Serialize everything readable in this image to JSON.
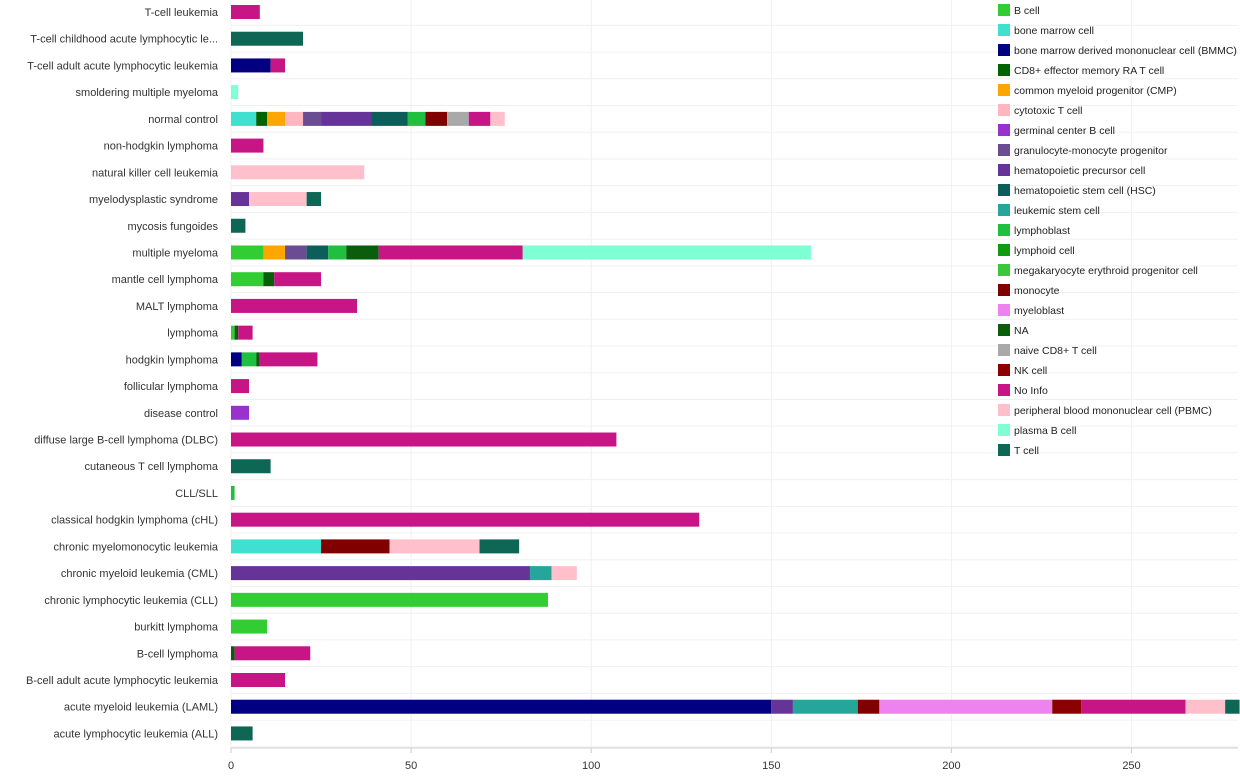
{
  "chart_data": {
    "type": "bar",
    "orientation": "horizontal",
    "stacked": true,
    "grid": true,
    "legend_position": "top-right",
    "xlim": [
      0,
      280
    ],
    "x_ticks": [
      0,
      50,
      100,
      150,
      200,
      250
    ],
    "categories": [
      "T-cell leukemia",
      "T-cell childhood acute lymphocytic le...",
      "T-cell adult acute lymphocytic leukemia",
      "smoldering multiple myeloma",
      "normal control",
      "non-hodgkin lymphoma",
      "natural killer cell leukemia",
      "myelodysplastic syndrome",
      "mycosis fungoides",
      "multiple myeloma",
      "mantle cell lymphoma",
      "MALT lymphoma",
      "lymphoma",
      "hodgkin lymphoma",
      "follicular lymphoma",
      "disease control",
      "diffuse large B-cell lymphoma (DLBC)",
      "cutaneous T cell lymphoma",
      "CLL/SLL",
      "classical hodgkin lymphoma (cHL)",
      "chronic myelomonocytic leukemia",
      "chronic myeloid leukemia (CML)",
      "chronic lymphocytic leukemia (CLL)",
      "burkitt lymphoma",
      "B-cell lymphoma",
      "B-cell adult acute lymphocytic leukemia",
      "acute myeloid leukemia (LAML)",
      "acute lymphocytic leukemia (ALL)"
    ],
    "series": [
      {
        "name": "B cell",
        "color": "#32cd32",
        "values": [
          0,
          0,
          0,
          0,
          0,
          0,
          0,
          0,
          0,
          9,
          9,
          0,
          1,
          0,
          0,
          0,
          0,
          0,
          0,
          0,
          0,
          0,
          88,
          10,
          0,
          0,
          0,
          0
        ]
      },
      {
        "name": "bone marrow cell",
        "color": "#40e0d0",
        "values": [
          0,
          0,
          0,
          0,
          7,
          0,
          0,
          0,
          0,
          0,
          0,
          0,
          0,
          0,
          0,
          0,
          0,
          0,
          0,
          0,
          25,
          0,
          0,
          0,
          0,
          0,
          0,
          0
        ]
      },
      {
        "name": "bone marrow derived mononuclear cell (BMMC)",
        "color": "#000080",
        "values": [
          0,
          0,
          11,
          0,
          0,
          0,
          0,
          0,
          0,
          0,
          0,
          0,
          0,
          3,
          0,
          0,
          0,
          0,
          0,
          0,
          0,
          0,
          0,
          0,
          0,
          0,
          150,
          0
        ]
      },
      {
        "name": "CD8+ effector memory RA T cell",
        "color": "#006400",
        "values": [
          0,
          0,
          0,
          0,
          3,
          0,
          0,
          0,
          0,
          0,
          0,
          0,
          0,
          0,
          0,
          0,
          0,
          0,
          0,
          0,
          0,
          0,
          0,
          0,
          0,
          0,
          0,
          0
        ]
      },
      {
        "name": "common myeloid progenitor (CMP)",
        "color": "#ffa500",
        "values": [
          0,
          0,
          0,
          0,
          5,
          0,
          0,
          0,
          0,
          6,
          0,
          0,
          0,
          0,
          0,
          0,
          0,
          0,
          0,
          0,
          0,
          0,
          0,
          0,
          0,
          0,
          0,
          0
        ]
      },
      {
        "name": "cytotoxic T cell",
        "color": "#ffb6c1",
        "values": [
          0,
          0,
          0,
          0,
          5,
          0,
          0,
          0,
          0,
          0,
          0,
          0,
          0,
          0,
          0,
          0,
          0,
          0,
          0,
          0,
          0,
          0,
          0,
          0,
          0,
          0,
          0,
          0
        ]
      },
      {
        "name": "germinal center B cell",
        "color": "#9932cc",
        "values": [
          0,
          0,
          0,
          0,
          0,
          0,
          0,
          0,
          0,
          0,
          0,
          0,
          0,
          0,
          0,
          5,
          0,
          0,
          0,
          0,
          0,
          0,
          0,
          0,
          0,
          0,
          0,
          0
        ]
      },
      {
        "name": "granulocyte-monocyte progenitor",
        "color": "#6a4c93",
        "values": [
          0,
          0,
          0,
          0,
          5,
          0,
          0,
          0,
          0,
          6,
          0,
          0,
          0,
          0,
          0,
          0,
          0,
          0,
          0,
          0,
          0,
          0,
          0,
          0,
          0,
          0,
          0,
          0
        ]
      },
      {
        "name": "hematopoietic precursor cell",
        "color": "#663399",
        "values": [
          0,
          0,
          0,
          0,
          14,
          0,
          0,
          5,
          0,
          0,
          0,
          0,
          0,
          0,
          0,
          0,
          0,
          0,
          0,
          0,
          0,
          83,
          0,
          0,
          0,
          0,
          6,
          0
        ]
      },
      {
        "name": "hematopoietic stem cell (HSC)",
        "color": "#0b5e5a",
        "values": [
          0,
          0,
          0,
          0,
          10,
          0,
          0,
          0,
          0,
          6,
          0,
          0,
          0,
          0,
          0,
          0,
          0,
          0,
          0,
          0,
          0,
          0,
          0,
          0,
          0,
          0,
          0,
          0
        ]
      },
      {
        "name": "leukemic stem cell",
        "color": "#26a69a",
        "values": [
          0,
          0,
          0,
          0,
          0,
          0,
          0,
          0,
          0,
          0,
          0,
          0,
          0,
          0,
          0,
          0,
          0,
          0,
          0,
          0,
          0,
          6,
          0,
          0,
          0,
          0,
          18,
          0
        ]
      },
      {
        "name": "lymphoblast",
        "color": "#1fbf3f",
        "values": [
          0,
          0,
          0,
          0,
          5,
          0,
          0,
          0,
          0,
          5,
          0,
          0,
          0,
          4,
          0,
          0,
          0,
          0,
          1,
          0,
          0,
          0,
          0,
          0,
          0,
          0,
          0,
          0
        ]
      },
      {
        "name": "lymphoid cell",
        "color": "#119911",
        "values": [
          0,
          0,
          0,
          0,
          0,
          0,
          0,
          0,
          0,
          0,
          0,
          0,
          0,
          0,
          0,
          0,
          0,
          0,
          0,
          0,
          0,
          0,
          0,
          0,
          0,
          0,
          0,
          0
        ]
      },
      {
        "name": "megakaryocyte erythroid progenitor cell",
        "color": "#3ac83a",
        "values": [
          0,
          0,
          0,
          0,
          0,
          0,
          0,
          0,
          0,
          0,
          0,
          0,
          0,
          0,
          0,
          0,
          0,
          0,
          0,
          0,
          0,
          0,
          0,
          0,
          0,
          0,
          0,
          0
        ]
      },
      {
        "name": "monocyte",
        "color": "#800000",
        "values": [
          0,
          0,
          0,
          0,
          6,
          0,
          0,
          0,
          0,
          0,
          0,
          0,
          0,
          0,
          0,
          0,
          0,
          0,
          0,
          0,
          19,
          0,
          0,
          0,
          0,
          0,
          6,
          0
        ]
      },
      {
        "name": "myeloblast",
        "color": "#ee82ee",
        "values": [
          0,
          0,
          0,
          0,
          0,
          0,
          0,
          0,
          0,
          0,
          0,
          0,
          0,
          0,
          0,
          0,
          0,
          0,
          0,
          0,
          0,
          0,
          0,
          0,
          0,
          0,
          48,
          0
        ]
      },
      {
        "name": "NA",
        "color": "#0a5d0a",
        "values": [
          0,
          0,
          0,
          0,
          0,
          0,
          0,
          0,
          0,
          9,
          3,
          0,
          1,
          1,
          0,
          0,
          0,
          0,
          0,
          0,
          0,
          0,
          0,
          0,
          1,
          0,
          0,
          0
        ]
      },
      {
        "name": "naive CD8+ T cell",
        "color": "#a9a9a9",
        "values": [
          0,
          0,
          0,
          0,
          6,
          0,
          0,
          0,
          0,
          0,
          0,
          0,
          0,
          0,
          0,
          0,
          0,
          0,
          0,
          0,
          0,
          0,
          0,
          0,
          0,
          0,
          0,
          0
        ]
      },
      {
        "name": "NK cell",
        "color": "#8b0000",
        "values": [
          0,
          0,
          0,
          0,
          0,
          0,
          0,
          0,
          0,
          0,
          0,
          0,
          0,
          0,
          0,
          0,
          0,
          0,
          0,
          0,
          0,
          0,
          0,
          0,
          0,
          0,
          8,
          0
        ]
      },
      {
        "name": "No Info",
        "color": "#c71585",
        "values": [
          8,
          0,
          4,
          0,
          6,
          9,
          0,
          0,
          0,
          40,
          13,
          35,
          4,
          16,
          5,
          0,
          107,
          0,
          0,
          130,
          0,
          0,
          0,
          0,
          21,
          15,
          29,
          0
        ]
      },
      {
        "name": "peripheral blood mononuclear cell (PBMC)",
        "color": "#ffc0cb",
        "values": [
          0,
          0,
          0,
          0,
          4,
          0,
          37,
          16,
          0,
          0,
          0,
          0,
          0,
          0,
          0,
          0,
          0,
          0,
          0,
          0,
          25,
          7,
          0,
          0,
          0,
          0,
          11,
          0
        ]
      },
      {
        "name": "plasma B cell",
        "color": "#7fffd4",
        "values": [
          0,
          0,
          0,
          2,
          0,
          0,
          0,
          0,
          0,
          80,
          0,
          0,
          0,
          0,
          0,
          0,
          0,
          0,
          0,
          0,
          0,
          0,
          0,
          0,
          0,
          0,
          0,
          0
        ]
      },
      {
        "name": "T cell",
        "color": "#0e6655",
        "values": [
          0,
          20,
          0,
          0,
          0,
          0,
          0,
          4,
          4,
          0,
          0,
          0,
          0,
          0,
          0,
          0,
          0,
          11,
          0,
          0,
          11,
          0,
          0,
          0,
          0,
          0,
          4,
          6
        ]
      }
    ]
  }
}
